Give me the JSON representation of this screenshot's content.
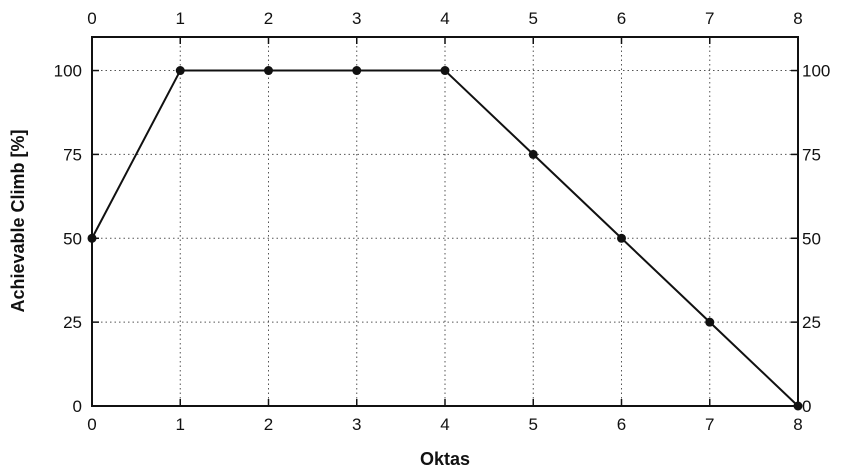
{
  "chart_data": {
    "type": "line",
    "title": "",
    "xlabel": "Oktas",
    "ylabel": "Achievable Climb [%]",
    "x": [
      0,
      1,
      2,
      3,
      4,
      5,
      6,
      7,
      8
    ],
    "series": [
      {
        "values": [
          50,
          100,
          100,
          100,
          100,
          75,
          50,
          25,
          0
        ]
      }
    ],
    "xlim": [
      0,
      8
    ],
    "ylim": [
      0,
      110
    ],
    "x_ticks": [
      "0",
      "1",
      "2",
      "3",
      "4",
      "5",
      "6",
      "7",
      "8"
    ],
    "y_ticks": [
      "0",
      "25",
      "50",
      "75",
      "100"
    ],
    "x_ticks_mirrored_top": true,
    "y_ticks_mirrored_right": true,
    "grid": "dotted",
    "legend": "none",
    "line_color": "#111111",
    "marker_color": "#111111"
  }
}
